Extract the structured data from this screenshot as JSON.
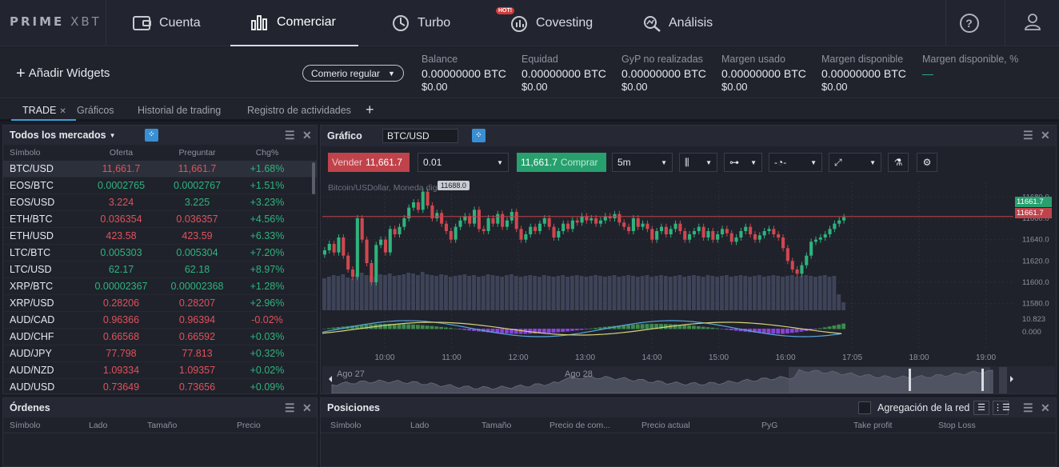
{
  "app": {
    "logo_primary": "PRIME",
    "logo_secondary": "XBT"
  },
  "nav": {
    "items": [
      {
        "label": "Cuenta",
        "icon": "wallet-icon"
      },
      {
        "label": "Comerciar",
        "icon": "bar-chart-icon"
      },
      {
        "label": "Turbo",
        "icon": "turbo-icon"
      },
      {
        "label": "Covesting",
        "icon": "covesting-icon"
      },
      {
        "label": "Análisis",
        "icon": "analysis-icon"
      }
    ],
    "hot_badge": "HOT!",
    "help": "?"
  },
  "info": {
    "add_widgets": "Añadir Widgets",
    "mode": "Comerio regular",
    "stats": [
      {
        "label": "Balance",
        "btc": "0.00000000 BTC",
        "usd": "$0.00"
      },
      {
        "label": "Equidad",
        "btc": "0.00000000 BTC",
        "usd": "$0.00"
      },
      {
        "label": "GyP no realizadas",
        "btc": "0.00000000 BTC",
        "usd": "$0.00"
      },
      {
        "label": "Margen usado",
        "btc": "0.00000000 BTC",
        "usd": "$0.00"
      },
      {
        "label": "Margen disponible",
        "btc": "0.00000000 BTC",
        "usd": "$0.00"
      },
      {
        "label": "Margen disponible, %",
        "btc": "—",
        "usd": ""
      }
    ]
  },
  "tabs": [
    "TRADE",
    "Gráficos",
    "Historial de trading",
    "Registro de actividades"
  ],
  "markets": {
    "title": "Todos los mercados",
    "columns": [
      "Símbolo",
      "Oferta",
      "Preguntar",
      "Chg%"
    ],
    "rows": [
      {
        "sym": "BTC/USD",
        "bid": "11,661.7",
        "ask": "11,661.7",
        "chg": "+1.68%",
        "bc": "red",
        "ac": "red"
      },
      {
        "sym": "EOS/BTC",
        "bid": "0.0002765",
        "ask": "0.0002767",
        "chg": "+1.51%",
        "bc": "grn",
        "ac": "grn"
      },
      {
        "sym": "EOS/USD",
        "bid": "3.224",
        "ask": "3.225",
        "chg": "+3.23%",
        "bc": "red",
        "ac": "grn"
      },
      {
        "sym": "ETH/BTC",
        "bid": "0.036354",
        "ask": "0.036357",
        "chg": "+4.56%",
        "bc": "red",
        "ac": "red"
      },
      {
        "sym": "ETH/USD",
        "bid": "423.58",
        "ask": "423.59",
        "chg": "+6.33%",
        "bc": "red",
        "ac": "red"
      },
      {
        "sym": "LTC/BTC",
        "bid": "0.005303",
        "ask": "0.005304",
        "chg": "+7.20%",
        "bc": "grn",
        "ac": "grn"
      },
      {
        "sym": "LTC/USD",
        "bid": "62.17",
        "ask": "62.18",
        "chg": "+8.97%",
        "bc": "grn",
        "ac": "grn"
      },
      {
        "sym": "XRP/BTC",
        "bid": "0.00002367",
        "ask": "0.00002368",
        "chg": "+1.28%",
        "bc": "grn",
        "ac": "grn"
      },
      {
        "sym": "XRP/USD",
        "bid": "0.28206",
        "ask": "0.28207",
        "chg": "+2.96%",
        "bc": "red",
        "ac": "red"
      },
      {
        "sym": "AUD/CAD",
        "bid": "0.96366",
        "ask": "0.96394",
        "chg": "-0.02%",
        "bc": "red",
        "ac": "red"
      },
      {
        "sym": "AUD/CHF",
        "bid": "0.66568",
        "ask": "0.66592",
        "chg": "+0.03%",
        "bc": "red",
        "ac": "red"
      },
      {
        "sym": "AUD/JPY",
        "bid": "77.798",
        "ask": "77.813",
        "chg": "+0.32%",
        "bc": "red",
        "ac": "red"
      },
      {
        "sym": "AUD/NZD",
        "bid": "1.09334",
        "ask": "1.09357",
        "chg": "+0.02%",
        "bc": "red",
        "ac": "red"
      },
      {
        "sym": "AUD/USD",
        "bid": "0.73649",
        "ask": "0.73656",
        "chg": "+0.09%",
        "bc": "red",
        "ac": "red"
      }
    ]
  },
  "chart_panel": {
    "title": "Gráfico",
    "symbol": "BTC/USD",
    "sell_label": "Vender",
    "sell_price": "11,661.7",
    "qty": "0.01",
    "buy_price": "11,661.7",
    "buy_label": "Comprar",
    "interval": "5m",
    "legend": "Bitcoin/USDollar, Moneda digital",
    "tooltip": "11688.0",
    "price_tag_top": "11661.7",
    "price_tag_bottom": "11661.7",
    "y_ticks": [
      "11680.0",
      "11660.0",
      "11640.0",
      "11620.0",
      "11600.0",
      "11580.0",
      "10.823",
      "0.000"
    ],
    "x_ticks": [
      "10:00",
      "11:00",
      "12:00",
      "13:00",
      "14:00",
      "15:00",
      "16:00",
      "17:05",
      "18:00",
      "19:00"
    ],
    "nav_labels": [
      "Ago 27",
      "Ago 28"
    ]
  },
  "orders": {
    "title": "Órdenes",
    "columns": [
      "Símbolo",
      "Lado",
      "Tamaño",
      "Precio"
    ]
  },
  "positions": {
    "title": "Posiciones",
    "aggregate_label": "Agregación de la red",
    "columns": [
      "Símbolo",
      "Lado",
      "Tamaño",
      "Precio de com...",
      "Precio actual",
      "PyG",
      "Take profit",
      "Stop Loss"
    ]
  },
  "chart_data": {
    "type": "candlestick",
    "price_axis": [
      11570,
      11690
    ],
    "closes": [
      11630,
      11636,
      11628,
      11642,
      11625,
      11612,
      11605,
      11660,
      11640,
      11618,
      11600,
      11635,
      11640,
      11628,
      11650,
      11645,
      11652,
      11660,
      11670,
      11675,
      11668,
      11685,
      11672,
      11660,
      11665,
      11655,
      11648,
      11640,
      11652,
      11658,
      11662,
      11655,
      11668,
      11650,
      11648,
      11660,
      11655,
      11664,
      11652,
      11658,
      11666,
      11650,
      11640,
      11645,
      11652,
      11648,
      11655,
      11660,
      11652,
      11642,
      11648,
      11655,
      11650,
      11658,
      11656,
      11662,
      11658,
      11660,
      11655,
      11658,
      11662,
      11660,
      11664,
      11656,
      11652,
      11648,
      11660,
      11652,
      11655,
      11650,
      11640,
      11648,
      11652,
      11645,
      11650,
      11655,
      11648,
      11640,
      11645,
      11648,
      11652,
      11642,
      11648,
      11640,
      11645,
      11650,
      11646,
      11638,
      11642,
      11648,
      11652,
      11645,
      11640,
      11644,
      11648,
      11650,
      11645,
      11642,
      11632,
      11620,
      11612,
      11608,
      11616,
      11625,
      11638,
      11640,
      11642,
      11645,
      11650,
      11655,
      11658,
      11661
    ],
    "volumes": [
      40,
      42,
      44,
      43,
      45,
      41,
      40,
      46,
      47,
      44,
      43,
      42,
      45,
      44,
      46,
      43,
      44,
      45,
      47,
      46,
      44,
      48,
      45,
      44,
      43,
      45,
      44,
      42,
      43,
      44,
      45,
      43,
      44,
      42,
      43,
      45,
      44,
      43,
      42,
      44,
      45,
      43,
      42,
      43,
      44,
      43,
      42,
      44,
      43,
      42,
      43,
      44,
      42,
      43,
      44,
      43,
      42,
      43,
      44,
      43,
      42,
      43,
      44,
      42,
      43,
      44,
      43,
      42,
      43,
      44,
      42,
      43,
      44,
      43,
      42,
      43,
      44,
      42,
      43,
      44,
      43,
      42,
      44,
      43,
      42,
      43,
      44,
      42,
      43,
      44,
      43,
      42,
      43,
      44,
      42,
      43,
      44,
      43,
      42,
      43,
      44,
      42,
      43,
      44,
      43,
      42,
      43,
      44,
      42,
      43,
      20,
      10
    ],
    "navigator_dates": [
      "Ago 27",
      "Ago 28"
    ]
  }
}
